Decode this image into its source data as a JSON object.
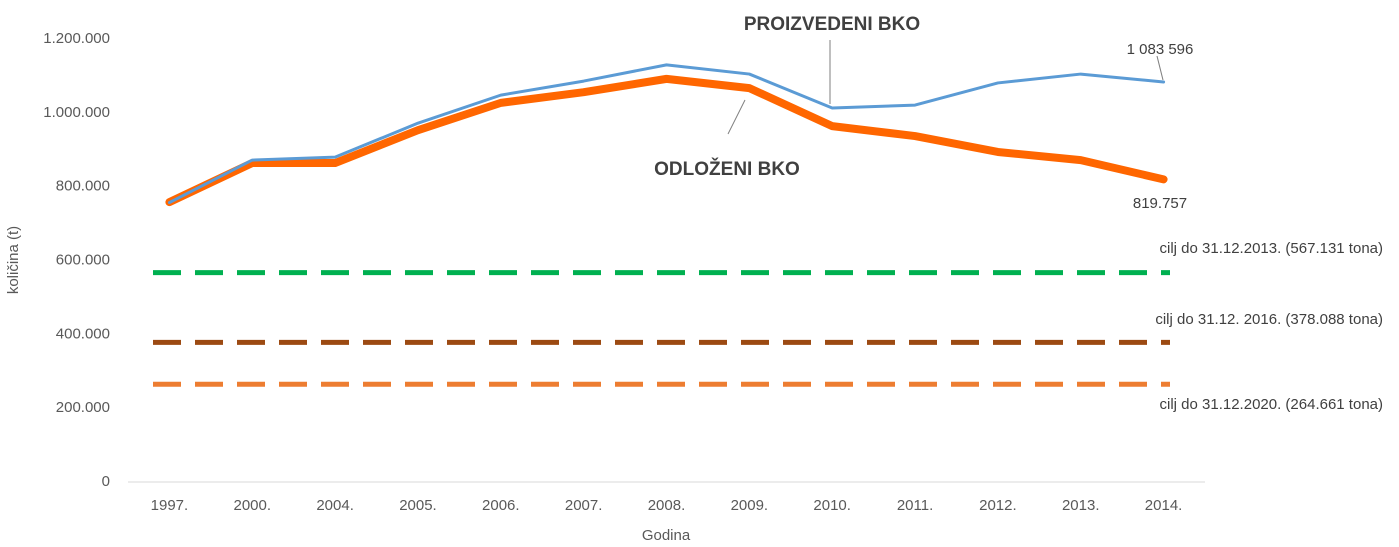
{
  "chart_data": {
    "type": "line",
    "y_label": "količina (t)",
    "x_label": "Godina",
    "categories": [
      "1997.",
      "2000.",
      "2004.",
      "2005.",
      "2006.",
      "2007.",
      "2008.",
      "2009.",
      "2010.",
      "2011.",
      "2012.",
      "2013.",
      "2014."
    ],
    "series": [
      {
        "name": "PROIZVEDENI BKO",
        "color": "#5b9bd5",
        "values": [
          757000,
          872000,
          880000,
          972000,
          1048000,
          1086000,
          1130000,
          1105000,
          1013000,
          1021000,
          1081000,
          1105000,
          1083596
        ],
        "value_labels": [
          null,
          null,
          null,
          null,
          null,
          null,
          null,
          null,
          null,
          null,
          null,
          null,
          "1 083 596"
        ]
      },
      {
        "name": "ODLOŽENI BKO",
        "color": "#ff6600",
        "values": [
          758000,
          864000,
          864000,
          953000,
          1027000,
          1056000,
          1092000,
          1067000,
          964000,
          937000,
          894000,
          872000,
          819757
        ],
        "value_labels": [
          null,
          null,
          null,
          null,
          null,
          null,
          null,
          null,
          null,
          null,
          null,
          null,
          "819.757"
        ]
      }
    ],
    "reference_lines": [
      {
        "label": "cilj do 31.12.2013. (567.131 tona)",
        "value": 567131,
        "color": "#00b050"
      },
      {
        "label": "cilj do 31.12. 2016. (378.088 tona)",
        "value": 378088,
        "color": "#9c4a12"
      },
      {
        "label": "cilj do 31.12.2020. (264.661 tona)",
        "value": 264661,
        "color": "#ed7d31"
      }
    ],
    "ylim": [
      0,
      1200000
    ],
    "yticks": [
      0,
      {
        "value": 200000,
        "label": "200.000"
      },
      {
        "value": 400000,
        "label": "400.000"
      },
      {
        "value": 600000,
        "label": "600.000"
      },
      {
        "value": 800000,
        "label": "800.000"
      },
      {
        "value": 1000000,
        "label": "1.000.000"
      },
      {
        "value": 1200000,
        "label": "1.200.000"
      }
    ],
    "grid": false
  }
}
